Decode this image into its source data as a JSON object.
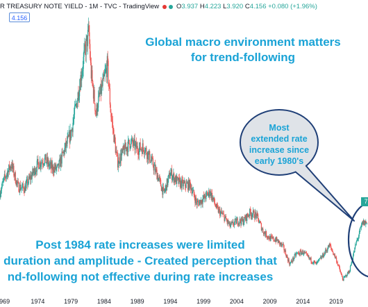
{
  "header": {
    "symbol_label": "R TREASURY NOTE YIELD - 1M - TVC - TradingView",
    "open_key": "O",
    "open": "3.937",
    "high_key": "H",
    "high": "4.223",
    "low_key": "L",
    "low": "3.920",
    "close_key": "C",
    "close": "4.156",
    "change": "+0.080 (+1.96%)"
  },
  "price_box": "4.156",
  "annotations": {
    "title_line1": "Global macro environment matters",
    "title_line2": "for trend-following",
    "bubble_line1": "Most",
    "bubble_line2": "extended rate",
    "bubble_line3": "increase since",
    "bubble_line4": "early 1980's",
    "bottom_line1": "Post 1984 rate increases were limited",
    "bottom_line2": "duration and amplitude - Created perception that",
    "bottom_line3": "nd-following not effective during rate increases"
  },
  "tag_label": "7",
  "colors": {
    "up": "#26a69a",
    "down": "#ef5350",
    "annotation": "#1aa3d6",
    "bubble_fill": "#dfe3e8",
    "bubble_stroke": "#1f3f77"
  },
  "chart_data": {
    "type": "candlestick",
    "x_axis": {
      "ticks": [
        "969",
        "1974",
        "1979",
        "1984",
        "1989",
        "1994",
        "1999",
        "2004",
        "2009",
        "2014",
        "2019"
      ],
      "range": [
        1968.3,
        2023.8
      ]
    },
    "y_range": [
      0,
      16
    ],
    "series": [
      {
        "name": "",
        "points": [
          [
            1968,
            5.6
          ],
          [
            1969,
            6.8
          ],
          [
            1970,
            7.6
          ],
          [
            1971,
            6.3
          ],
          [
            1972,
            6.2
          ],
          [
            1973,
            6.9
          ],
          [
            1974,
            7.6
          ],
          [
            1975,
            7.9
          ],
          [
            1976,
            7.4
          ],
          [
            1977,
            7.3
          ],
          [
            1978,
            8.4
          ],
          [
            1979,
            9.4
          ],
          [
            1980,
            11.5
          ],
          [
            1981,
            13.9
          ],
          [
            1981.7,
            15.3
          ],
          [
            1982,
            13.0
          ],
          [
            1982.8,
            10.5
          ],
          [
            1983,
            11.1
          ],
          [
            1984,
            12.5
          ],
          [
            1984.5,
            13.4
          ],
          [
            1985,
            10.6
          ],
          [
            1986,
            7.7
          ],
          [
            1987,
            8.4
          ],
          [
            1988,
            8.9
          ],
          [
            1989,
            8.5
          ],
          [
            1990,
            8.6
          ],
          [
            1991,
            7.9
          ],
          [
            1992,
            7.0
          ],
          [
            1993,
            5.9
          ],
          [
            1994,
            7.1
          ],
          [
            1995,
            6.6
          ],
          [
            1996,
            6.4
          ],
          [
            1997,
            6.4
          ],
          [
            1998,
            5.3
          ],
          [
            1999,
            5.6
          ],
          [
            2000,
            6.0
          ],
          [
            2001,
            5.0
          ],
          [
            2002,
            4.6
          ],
          [
            2003,
            4.0
          ],
          [
            2004,
            4.3
          ],
          [
            2005,
            4.3
          ],
          [
            2006,
            4.8
          ],
          [
            2007,
            4.6
          ],
          [
            2008,
            3.7
          ],
          [
            2009,
            3.3
          ],
          [
            2010,
            3.2
          ],
          [
            2011,
            2.8
          ],
          [
            2012,
            1.8
          ],
          [
            2013,
            2.4
          ],
          [
            2014,
            2.5
          ],
          [
            2015,
            2.1
          ],
          [
            2016,
            1.8
          ],
          [
            2017,
            2.3
          ],
          [
            2018,
            2.9
          ],
          [
            2019,
            2.1
          ],
          [
            2020,
            0.9
          ],
          [
            2021,
            1.4
          ],
          [
            2022,
            3.0
          ],
          [
            2023,
            4.2
          ]
        ]
      }
    ]
  }
}
